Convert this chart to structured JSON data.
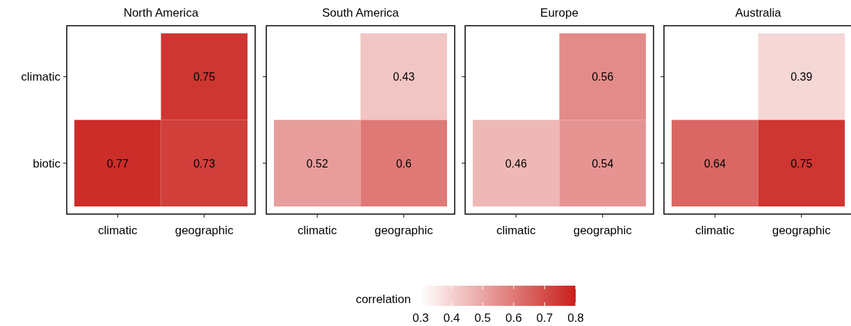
{
  "chart_data": [
    {
      "type": "heatmap",
      "title": "North America",
      "categories": [
        "climatic",
        "geographic"
      ],
      "y_categories": [
        "climatic",
        "biotic"
      ],
      "cells": [
        [
          null,
          0.75
        ],
        [
          0.77,
          0.73
        ]
      ],
      "data_labels": true
    },
    {
      "type": "heatmap",
      "title": "South America",
      "categories": [
        "climatic",
        "geographic"
      ],
      "y_categories": [
        "climatic",
        "biotic"
      ],
      "cells": [
        [
          null,
          0.43
        ],
        [
          0.52,
          0.6
        ]
      ],
      "data_labels": true,
      "tick_labels": "x"
    },
    {
      "type": "heatmap",
      "title": "Europe",
      "categories": [
        "climatic",
        "geographic"
      ],
      "y_categories": [
        "climatic",
        "biotic"
      ],
      "cells": [
        [
          null,
          0.56
        ],
        [
          0.46,
          0.54
        ]
      ],
      "data_labels": true,
      "tick_labels": "x"
    },
    {
      "type": "heatmap",
      "title": "Australia",
      "categories": [
        "climatic",
        "geographic"
      ],
      "y_categories": [
        "climatic",
        "biotic"
      ],
      "cells": [
        [
          null,
          0.39
        ],
        [
          0.64,
          0.75
        ]
      ],
      "data_labels": true,
      "tick_labels": "x",
      "clabel": "correlation",
      "clim": [
        0.3,
        0.8
      ],
      "cticks": [
        0.3,
        0.4,
        0.5,
        0.6,
        0.7,
        0.8
      ]
    }
  ]
}
